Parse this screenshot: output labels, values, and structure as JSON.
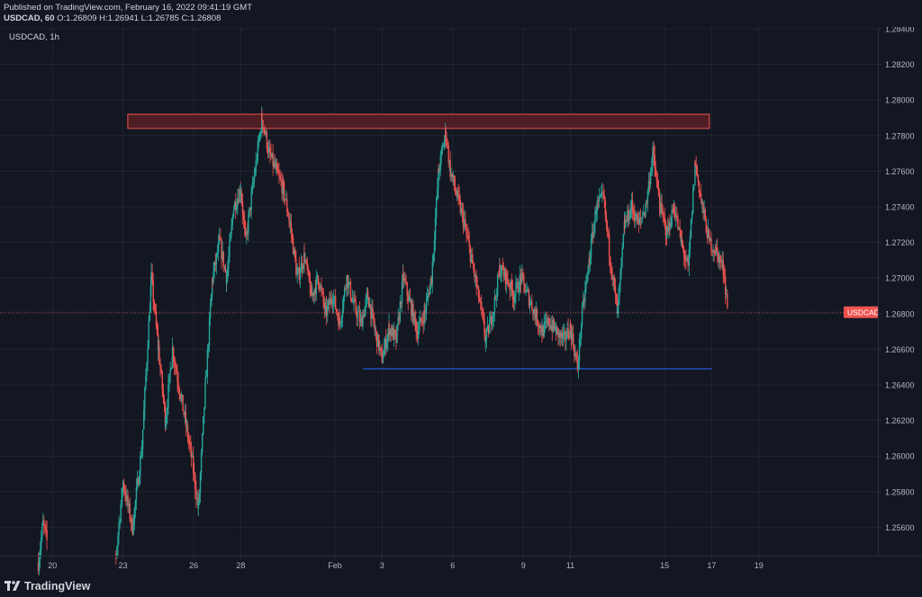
{
  "header": {
    "published": "Published on TradingView.com, February 16, 2022 09:41:19 GMT",
    "symbol_line_prefix": "USDCAD, 60",
    "ohlc": "O:1.26809 H:1.26941 L:1.26785 C:1.26808"
  },
  "chart_label": "USDCAD, 1h",
  "footer": {
    "brand": "TradingView"
  },
  "colors": {
    "background": "#131722",
    "grid": "#2a2e39",
    "up": "#26a69a",
    "down": "#ef5350",
    "price_line": "#ef5350",
    "support_line": "#2962ff",
    "resistance_zone_fill": "#5b1f24",
    "resistance_zone_border": "#ef5350",
    "axis_text": "#b2b5be"
  },
  "chart_data": {
    "type": "candlestick",
    "symbol": "USDCAD",
    "interval": "1h",
    "y_axis": {
      "ticks": [
        "1.28400",
        "1.28200",
        "1.28000",
        "1.27800",
        "1.27600",
        "1.27400",
        "1.27200",
        "1.27000",
        "1.26800",
        "1.26600",
        "1.26400",
        "1.26200",
        "1.26000",
        "1.25800",
        "1.25600"
      ],
      "range": [
        1.255,
        1.284
      ]
    },
    "x_axis": {
      "ticks": [
        "20",
        "23",
        "26",
        "28",
        "Feb",
        "3",
        "6",
        "9",
        "11",
        "15",
        "17",
        "19"
      ],
      "tick_days": [
        -12,
        -9,
        -6,
        -4,
        0,
        2,
        5,
        8,
        10,
        14,
        16,
        18
      ]
    },
    "last_price": {
      "label": "USDCAD",
      "value": "1.26808",
      "price": 1.26808
    },
    "resistance_zone": {
      "low": 1.2784,
      "high": 1.2792,
      "from_day": -8.8,
      "to_day": 15.9
    },
    "support_line": {
      "price": 1.2649,
      "from_day": 1.2,
      "to_day": 16.0
    },
    "price_path": [
      [
        -12.6,
        1.254
      ],
      [
        -12.4,
        1.2562
      ],
      [
        -12.2,
        1.255
      ],
      [
        -9.3,
        1.2545
      ],
      [
        -9.0,
        1.2585
      ],
      [
        -8.6,
        1.256
      ],
      [
        -8.2,
        1.2605
      ],
      [
        -7.8,
        1.27
      ],
      [
        -7.5,
        1.266
      ],
      [
        -7.2,
        1.262
      ],
      [
        -6.9,
        1.266
      ],
      [
        -6.5,
        1.263
      ],
      [
        -6.1,
        1.26
      ],
      [
        -5.8,
        1.257
      ],
      [
        -5.5,
        1.264
      ],
      [
        -5.2,
        1.27
      ],
      [
        -4.9,
        1.272
      ],
      [
        -4.6,
        1.27
      ],
      [
        -4.3,
        1.274
      ],
      [
        -4.0,
        1.275
      ],
      [
        -3.8,
        1.272
      ],
      [
        -3.4,
        1.276
      ],
      [
        -3.1,
        1.279
      ],
      [
        -2.8,
        1.277
      ],
      [
        -2.5,
        1.276
      ],
      [
        -2.2,
        1.275
      ],
      [
        -1.9,
        1.273
      ],
      [
        -1.6,
        1.27
      ],
      [
        -1.3,
        1.2712
      ],
      [
        -1.0,
        1.269
      ],
      [
        -0.7,
        1.27
      ],
      [
        -0.4,
        1.268
      ],
      [
        -0.1,
        1.269
      ],
      [
        0.2,
        1.2675
      ],
      [
        0.5,
        1.27
      ],
      [
        0.8,
        1.2685
      ],
      [
        1.1,
        1.2675
      ],
      [
        1.4,
        1.269
      ],
      [
        1.7,
        1.267
      ],
      [
        2.0,
        1.2655
      ],
      [
        2.3,
        1.2672
      ],
      [
        2.6,
        1.2665
      ],
      [
        2.9,
        1.27
      ],
      [
        3.2,
        1.2685
      ],
      [
        3.5,
        1.267
      ],
      [
        3.8,
        1.268
      ],
      [
        4.1,
        1.27
      ],
      [
        4.4,
        1.276
      ],
      [
        4.7,
        1.2782
      ],
      [
        4.9,
        1.276
      ],
      [
        5.2,
        1.2745
      ],
      [
        5.5,
        1.273
      ],
      [
        5.8,
        1.271
      ],
      [
        6.1,
        1.269
      ],
      [
        6.4,
        1.2665
      ],
      [
        6.7,
        1.268
      ],
      [
        7.0,
        1.2705
      ],
      [
        7.3,
        1.27
      ],
      [
        7.6,
        1.269
      ],
      [
        7.9,
        1.27
      ],
      [
        8.2,
        1.269
      ],
      [
        8.5,
        1.268
      ],
      [
        8.8,
        1.267
      ],
      [
        9.1,
        1.2675
      ],
      [
        9.4,
        1.267
      ],
      [
        9.7,
        1.2665
      ],
      [
        10.0,
        1.2672
      ],
      [
        10.3,
        1.265
      ],
      [
        10.5,
        1.268
      ],
      [
        10.8,
        1.271
      ],
      [
        11.1,
        1.274
      ],
      [
        11.4,
        1.2745
      ],
      [
        11.7,
        1.271
      ],
      [
        12.0,
        1.268
      ],
      [
        12.3,
        1.273
      ],
      [
        12.6,
        1.274
      ],
      [
        12.9,
        1.273
      ],
      [
        13.2,
        1.274
      ],
      [
        13.5,
        1.277
      ],
      [
        13.8,
        1.274
      ],
      [
        14.1,
        1.2725
      ],
      [
        14.4,
        1.274
      ],
      [
        14.7,
        1.272
      ],
      [
        15.0,
        1.2705
      ],
      [
        15.3,
        1.2765
      ],
      [
        15.6,
        1.274
      ],
      [
        15.9,
        1.272
      ],
      [
        16.2,
        1.2715
      ],
      [
        16.5,
        1.2705
      ],
      [
        16.7,
        1.2681
      ]
    ]
  }
}
